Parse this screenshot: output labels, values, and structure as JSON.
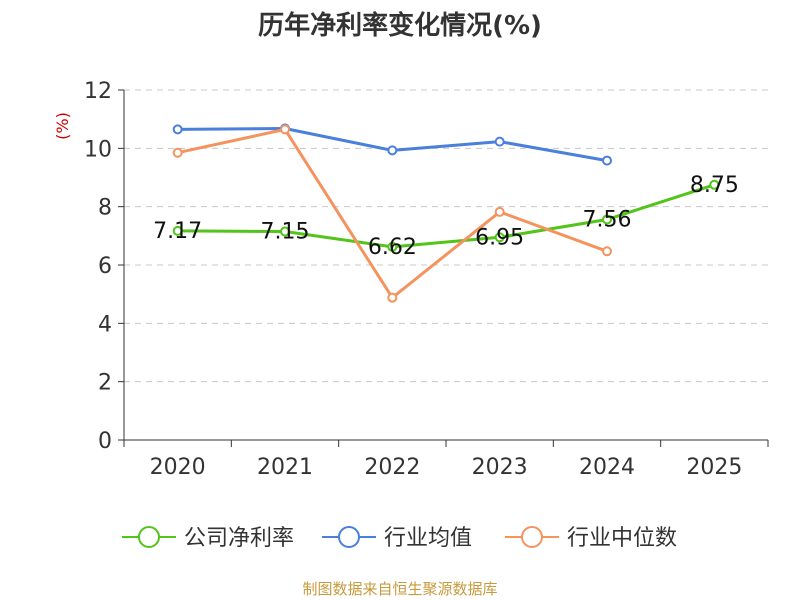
{
  "chart_data": {
    "type": "line",
    "title": "历年净利率变化情况(%)",
    "ylabel": "(%)",
    "categories": [
      "2020",
      "2021",
      "2022",
      "2023",
      "2024",
      "2025"
    ],
    "ylim": [
      0,
      12
    ],
    "yticks": [
      "0",
      "2",
      "4",
      "6",
      "8",
      "10",
      "12"
    ],
    "grid": true,
    "legend_position": "bottom",
    "series": [
      {
        "name": "公司净利率",
        "color": "#52c41a",
        "values": [
          7.17,
          7.15,
          6.62,
          6.95,
          7.56,
          8.75
        ],
        "labels": [
          "7.17",
          "7.15",
          "6.62",
          "6.95",
          "7.56",
          "8.75"
        ]
      },
      {
        "name": "行业均值",
        "color": "#4a7fdc",
        "values": [
          10.65,
          10.68,
          9.93,
          10.23,
          9.58,
          null
        ]
      },
      {
        "name": "行业中位数",
        "color": "#f5935f",
        "values": [
          9.85,
          10.65,
          4.88,
          7.82,
          6.47,
          null
        ]
      }
    ]
  },
  "source": "制图数据来自恒生聚源数据库"
}
